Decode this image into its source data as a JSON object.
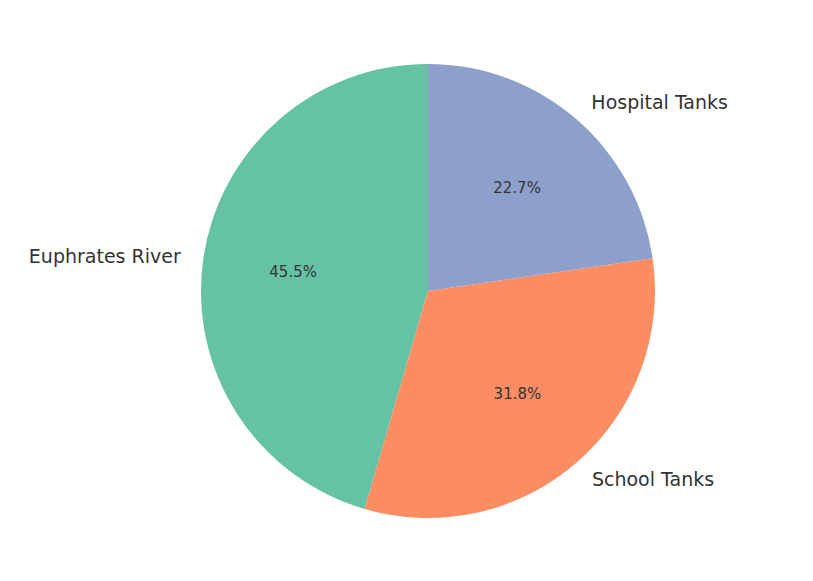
{
  "chart_data": {
    "type": "pie",
    "categories": [
      "Euphrates River",
      "School Tanks",
      "Hospital Tanks"
    ],
    "values": [
      45.5,
      31.8,
      22.7
    ],
    "value_labels": [
      "45.5%",
      "31.8%",
      "22.7%"
    ],
    "colors": [
      "#66c2a5",
      "#fc8d62",
      "#8da0cb"
    ],
    "data_labels": true
  }
}
